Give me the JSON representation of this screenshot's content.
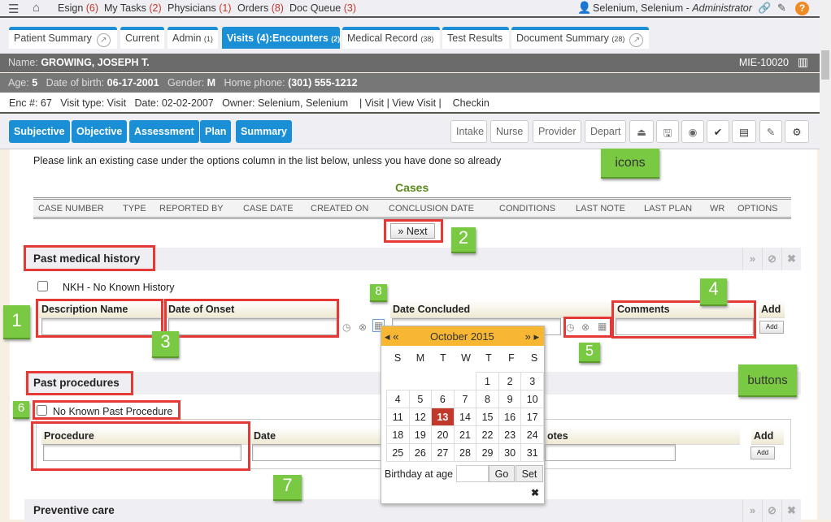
{
  "topbar": {
    "links": [
      {
        "label": "Esign",
        "count": "(6)"
      },
      {
        "label": "My Tasks",
        "count": "(2)"
      },
      {
        "label": "Physicians",
        "count": "(1)"
      },
      {
        "label": "Orders",
        "count": "(8)"
      },
      {
        "label": "Doc Queue",
        "count": "(3)"
      }
    ],
    "user": "Selenium, Selenium",
    "role": "Administrator",
    "sep": " - "
  },
  "tabs": [
    {
      "label": "Patient Summary",
      "count": ""
    },
    {
      "label": "Current",
      "count": ""
    },
    {
      "label": "Admin",
      "count": "(1)"
    },
    {
      "label": "Visits (4):Encounters",
      "count": "(2)"
    },
    {
      "label": "Medical Record",
      "count": "(38)"
    },
    {
      "label": "Test Results",
      "count": ""
    },
    {
      "label": "Document Summary",
      "count": "(28)"
    }
  ],
  "patient": {
    "name_label": "Name:",
    "name": "GROWING, JOSEPH T.",
    "mrn": "MIE-10020",
    "age_label": "Age:",
    "age": "5",
    "dob_label": "Date of birth:",
    "dob": "06-17-2001",
    "gender_label": "Gender:",
    "gender": "M",
    "phone_label": "Home phone:",
    "phone": "(301) 555-1212"
  },
  "encounter": {
    "text": "Enc #: 67   Visit type: Visit   Date: 02-02-2007   Owner: Selenium, Selenium    | Visit | View Visit |    Checkin"
  },
  "soap_tabs": [
    "Subjective",
    "Objective",
    "Assessment",
    "Plan",
    "Summary"
  ],
  "stage_buttons": [
    "Intake",
    "Nurse",
    "Provider",
    "Depart"
  ],
  "tool_icons": [
    "eject-icon",
    "save-icon",
    "eye-icon",
    "check-icon",
    "archive-icon",
    "edit-icon",
    "gears-icon"
  ],
  "notice": "Please link an existing case under the options column in the list below, unless you have done so already",
  "cases": {
    "title": "Cases",
    "columns": [
      "CASE NUMBER",
      "TYPE",
      "REPORTED BY",
      "CASE DATE",
      "CREATED ON",
      "CONCLUSION DATE",
      "CONDITIONS",
      "LAST NOTE",
      "LAST PLAN",
      "WR",
      "OPTIONS"
    ],
    "next": "Next"
  },
  "pmh": {
    "title": "Past medical history",
    "nkh": "NKH - No Known History",
    "cols": [
      "Description Name",
      "Date of Onset",
      "Date Concluded",
      "Comments",
      "Add"
    ],
    "add": "Add"
  },
  "procedures": {
    "title": "Past procedures",
    "none": "No Known Past Procedure",
    "cols": [
      "Procedure",
      "Date",
      "otes",
      "Add"
    ],
    "add": "Add"
  },
  "preventive": {
    "title": "Preventive care"
  },
  "calendar": {
    "month": "October 2015",
    "days": [
      "S",
      "M",
      "T",
      "W",
      "T",
      "F",
      "S"
    ],
    "weeks": [
      [
        "",
        "",
        "",
        "",
        "1",
        "2",
        "3"
      ],
      [
        "4",
        "5",
        "6",
        "7",
        "8",
        "9",
        "10"
      ],
      [
        "11",
        "12",
        "13",
        "14",
        "15",
        "16",
        "17"
      ],
      [
        "18",
        "19",
        "20",
        "21",
        "22",
        "23",
        "24"
      ],
      [
        "25",
        "26",
        "27",
        "28",
        "29",
        "30",
        "31"
      ]
    ],
    "today": "13",
    "birthday_label": "Birthday at age",
    "go": "Go",
    "set": "Set"
  },
  "annotations": {
    "icons": "icons",
    "buttons": "buttons",
    "n1": "1",
    "n2": "2",
    "n3": "3",
    "n4": "4",
    "n5": "5",
    "n6": "6",
    "n7": "7",
    "n8": "8"
  },
  "colors": {
    "accent": "#1a8fd6",
    "annotation": "#7ac943",
    "highlight": "#e53935",
    "calendar_header": "#f7b733"
  }
}
